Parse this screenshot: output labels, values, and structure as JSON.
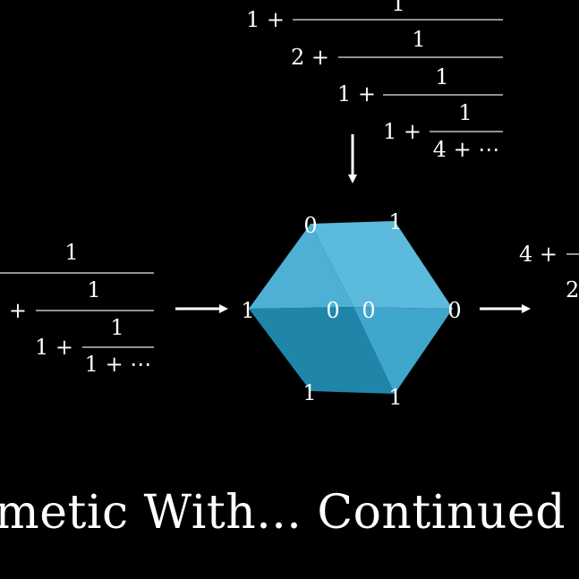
{
  "top_fraction": {
    "rows": [
      {
        "lead": "1 +",
        "num": "1"
      },
      {
        "lead": "2 +",
        "num": "1"
      },
      {
        "lead": "1 +",
        "num": "1"
      },
      {
        "lead": "1 +",
        "num": "1"
      }
    ],
    "tail": "4 + ⋯"
  },
  "left_fraction": {
    "rows": [
      {
        "lead": "",
        "num": "1"
      },
      {
        "lead": "+",
        "num": "1"
      },
      {
        "lead": "1 +",
        "num": "1"
      }
    ],
    "tail": "1 + ⋯"
  },
  "right_fraction": {
    "lead": "4 +",
    "tail": "2"
  },
  "cube": {
    "colors": {
      "top_left": "#4fb0d6",
      "top_right": "#5cbadc",
      "front_lower_left": "#1f86aa",
      "front_lower_right": "#3fa6cc"
    },
    "vertex_labels": {
      "top_left": "0",
      "top_right": "1",
      "left": "1",
      "center_left": "0",
      "center_right": "0",
      "right": "0",
      "bottom_left": "1",
      "bottom_right": "1"
    }
  },
  "title": "nmetic With...  Continued F"
}
